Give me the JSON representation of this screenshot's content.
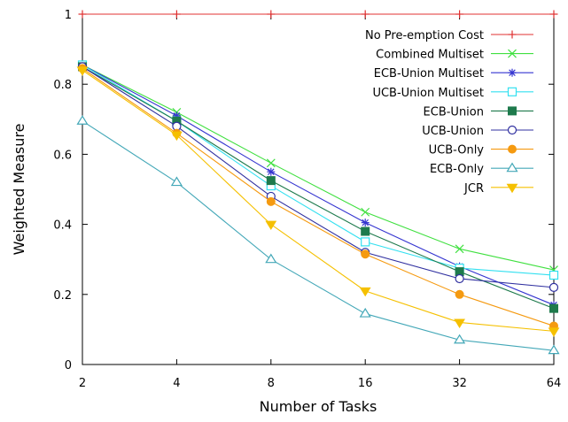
{
  "chart_data": {
    "type": "line",
    "title": "",
    "xlabel": "Number of Tasks",
    "ylabel": "Weighted Measure",
    "x_tick_labels": [
      "2",
      "4",
      "8",
      "16",
      "32",
      "64"
    ],
    "y_tick_labels": [
      "0",
      "0.2",
      "0.4",
      "0.6",
      "0.8",
      "1"
    ],
    "x": [
      2,
      4,
      8,
      16,
      32,
      64
    ],
    "x_scale": "log2",
    "ylim": [
      0,
      1
    ],
    "grid": false,
    "legend_position": "top-right",
    "series": [
      {
        "name": "No Pre-emption Cost",
        "values": [
          1.0,
          1.0,
          1.0,
          1.0,
          1.0,
          1.0
        ],
        "color": "#e03030",
        "marker": "plus"
      },
      {
        "name": "Combined Multiset",
        "values": [
          0.855,
          0.72,
          0.575,
          0.435,
          0.33,
          0.27
        ],
        "color": "#40e040",
        "marker": "x"
      },
      {
        "name": "ECB-Union Multiset",
        "values": [
          0.855,
          0.71,
          0.55,
          0.405,
          0.28,
          0.17
        ],
        "color": "#3535d0",
        "marker": "star"
      },
      {
        "name": "UCB-Union Multiset",
        "values": [
          0.855,
          0.695,
          0.51,
          0.35,
          0.275,
          0.255
        ],
        "color": "#33e0f0",
        "marker": "open-square"
      },
      {
        "name": "ECB-Union",
        "values": [
          0.85,
          0.695,
          0.525,
          0.38,
          0.265,
          0.16
        ],
        "color": "#1e7a4c",
        "marker": "filled-square"
      },
      {
        "name": "UCB-Union",
        "values": [
          0.85,
          0.68,
          0.48,
          0.32,
          0.245,
          0.22
        ],
        "color": "#3030a0",
        "marker": "open-circle"
      },
      {
        "name": "UCB-Only",
        "values": [
          0.845,
          0.66,
          0.465,
          0.315,
          0.2,
          0.11
        ],
        "color": "#f59a10",
        "marker": "filled-circle"
      },
      {
        "name": "ECB-Only",
        "values": [
          0.695,
          0.52,
          0.3,
          0.145,
          0.07,
          0.04
        ],
        "color": "#44a8b8",
        "marker": "open-triangle"
      },
      {
        "name": "JCR",
        "values": [
          0.84,
          0.655,
          0.4,
          0.21,
          0.12,
          0.095
        ],
        "color": "#f5c000",
        "marker": "filled-triangle-down"
      }
    ]
  }
}
